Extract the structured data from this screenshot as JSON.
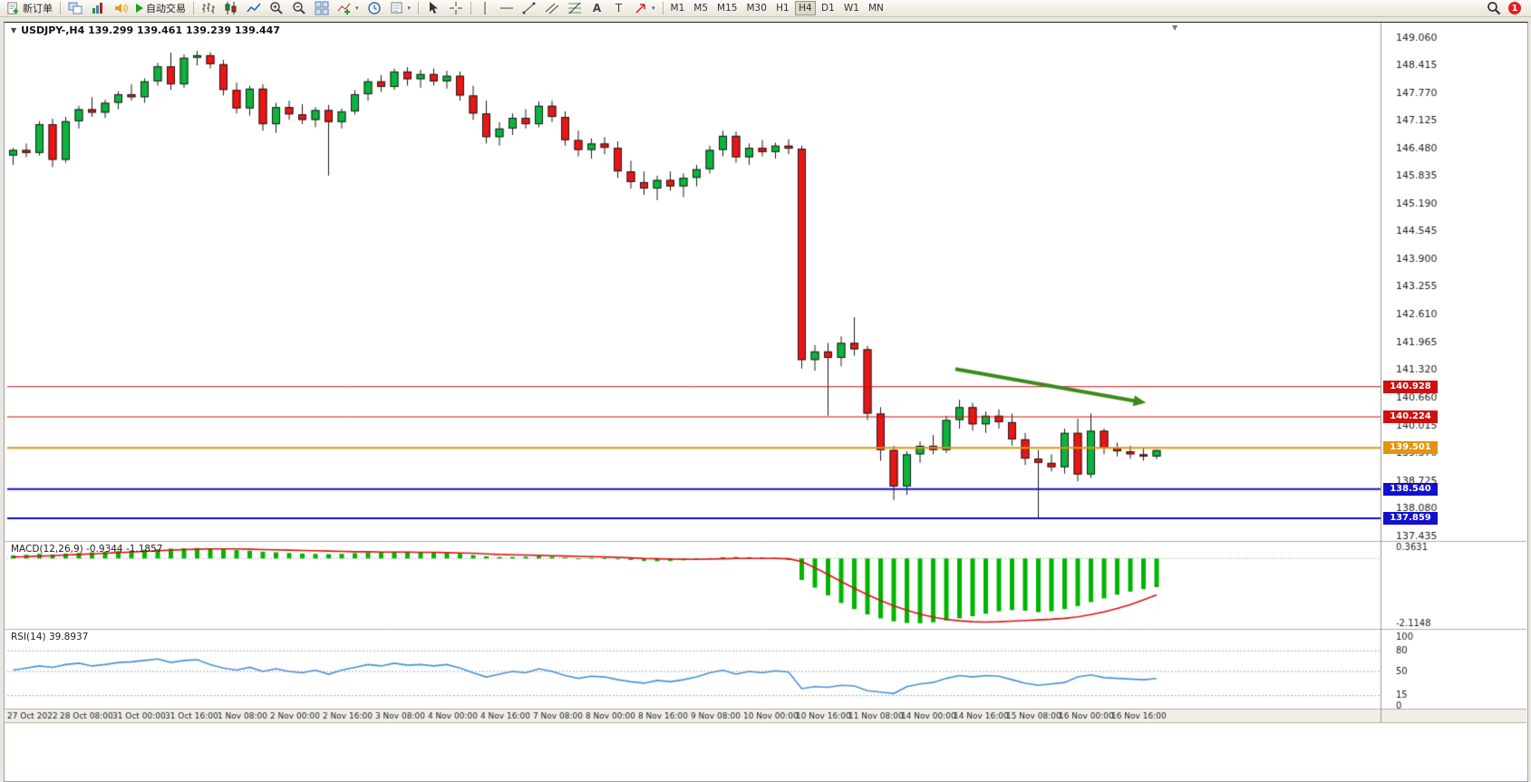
{
  "toolbar": {
    "new_order_label": "新订单",
    "auto_trading_label": "自动交易",
    "timeframes": [
      "M1",
      "M5",
      "M15",
      "M30",
      "H1",
      "H4",
      "D1",
      "W1",
      "MN"
    ],
    "active_timeframe": "H4",
    "notification_count": "1",
    "icon_names": [
      "new-order",
      "charts",
      "market-watch",
      "alerts",
      "auto-trading",
      "bar-chart",
      "candlestick-chart",
      "line-chart",
      "zoom-in",
      "zoom-out",
      "tile-windows",
      "indicators",
      "clock",
      "templates",
      "cursor",
      "crosshair",
      "vertical-line",
      "horizontal-line",
      "trendline",
      "equidistant-channel",
      "fibonacci",
      "text",
      "text-label",
      "arrows",
      "search",
      "notifications"
    ]
  },
  "chart_title": "USDJPY-,H4 139.299 139.461 139.239 139.447",
  "chart_data": {
    "type": "candlestick",
    "symbol": "USDJPY-",
    "period": "H4",
    "last_ohlc": {
      "open": 139.299,
      "high": 139.461,
      "low": 139.239,
      "close": 139.447
    },
    "colors": {
      "bull": "#0db33c",
      "bear": "#ea1515",
      "wick": "#1a1a1a",
      "macd_hist": "#00b400",
      "macd_signal": "#dd1111",
      "rsi_line": "#4a90d9",
      "arrow": "#3c8a1e"
    },
    "price_axis": {
      "ticks": [
        "149.060",
        "148.415",
        "147.770",
        "147.125",
        "146.480",
        "145.835",
        "145.190",
        "144.545",
        "143.900",
        "143.255",
        "142.610",
        "141.965",
        "141.320",
        "140.660",
        "140.015",
        "139.370",
        "138.725",
        "138.080",
        "137.435"
      ]
    },
    "time_labels": [
      "27 Oct 2022",
      "28 Oct 08:00",
      "31 Oct 00:00",
      "31 Oct 16:00",
      "1 Nov 08:00",
      "2 Nov 00:00",
      "2 Nov 16:00",
      "3 Nov 08:00",
      "4 Nov 00:00",
      "4 Nov 16:00",
      "7 Nov 08:00",
      "8 Nov 00:00",
      "8 Nov 16:00",
      "9 Nov 08:00",
      "10 Nov 00:00",
      "10 Nov 16:00",
      "11 Nov 08:00",
      "14 Nov 00:00",
      "14 Nov 16:00",
      "15 Nov 08:00",
      "16 Nov 00:00",
      "16 Nov 16:00"
    ],
    "candles": [
      [
        146.32,
        146.5,
        146.1,
        146.45
      ],
      [
        146.45,
        146.6,
        146.28,
        146.38
      ],
      [
        146.38,
        147.12,
        146.32,
        147.05
      ],
      [
        147.05,
        147.18,
        146.05,
        146.22
      ],
      [
        146.22,
        147.22,
        146.15,
        147.12
      ],
      [
        147.12,
        147.48,
        146.95,
        147.4
      ],
      [
        147.4,
        147.68,
        147.22,
        147.32
      ],
      [
        147.32,
        147.62,
        147.2,
        147.55
      ],
      [
        147.55,
        147.82,
        147.4,
        147.75
      ],
      [
        147.75,
        147.98,
        147.6,
        147.68
      ],
      [
        147.68,
        148.12,
        147.55,
        148.05
      ],
      [
        148.05,
        148.48,
        147.95,
        148.4
      ],
      [
        148.4,
        148.72,
        147.85,
        147.98
      ],
      [
        147.98,
        148.68,
        147.9,
        148.6
      ],
      [
        148.6,
        148.76,
        148.42,
        148.66
      ],
      [
        148.66,
        148.73,
        148.35,
        148.45
      ],
      [
        148.45,
        148.55,
        147.72,
        147.85
      ],
      [
        147.85,
        148.02,
        147.3,
        147.42
      ],
      [
        147.42,
        147.95,
        147.25,
        147.88
      ],
      [
        147.88,
        147.98,
        146.9,
        147.05
      ],
      [
        147.05,
        147.55,
        146.85,
        147.45
      ],
      [
        147.45,
        147.6,
        147.15,
        147.28
      ],
      [
        147.28,
        147.52,
        147.05,
        147.15
      ],
      [
        147.15,
        147.45,
        146.98,
        147.38
      ],
      [
        147.38,
        147.5,
        145.85,
        147.1
      ],
      [
        147.1,
        147.42,
        146.95,
        147.35
      ],
      [
        147.35,
        147.85,
        147.28,
        147.75
      ],
      [
        147.75,
        148.12,
        147.6,
        148.05
      ],
      [
        148.05,
        148.2,
        147.8,
        147.92
      ],
      [
        147.92,
        148.35,
        147.85,
        148.28
      ],
      [
        148.28,
        148.38,
        147.95,
        148.1
      ],
      [
        148.1,
        148.32,
        147.9,
        148.22
      ],
      [
        148.22,
        148.35,
        147.95,
        148.05
      ],
      [
        148.05,
        148.3,
        147.88,
        148.18
      ],
      [
        148.18,
        148.28,
        147.6,
        147.72
      ],
      [
        147.72,
        147.95,
        147.15,
        147.3
      ],
      [
        147.3,
        147.6,
        146.6,
        146.75
      ],
      [
        146.75,
        147.1,
        146.55,
        146.95
      ],
      [
        146.95,
        147.3,
        146.8,
        147.2
      ],
      [
        147.2,
        147.4,
        146.95,
        147.05
      ],
      [
        147.05,
        147.58,
        146.98,
        147.48
      ],
      [
        147.48,
        147.6,
        147.1,
        147.22
      ],
      [
        147.22,
        147.35,
        146.55,
        146.68
      ],
      [
        146.68,
        146.9,
        146.3,
        146.45
      ],
      [
        146.45,
        146.72,
        146.25,
        146.6
      ],
      [
        146.6,
        146.75,
        146.35,
        146.5
      ],
      [
        146.5,
        146.65,
        145.8,
        145.95
      ],
      [
        145.95,
        146.2,
        145.55,
        145.7
      ],
      [
        145.7,
        145.95,
        145.4,
        145.55
      ],
      [
        145.55,
        145.85,
        145.28,
        145.75
      ],
      [
        145.75,
        145.95,
        145.5,
        145.6
      ],
      [
        145.6,
        145.9,
        145.35,
        145.8
      ],
      [
        145.8,
        146.1,
        145.6,
        146.0
      ],
      [
        146.0,
        146.55,
        145.9,
        146.45
      ],
      [
        146.45,
        146.9,
        146.3,
        146.78
      ],
      [
        146.78,
        146.88,
        146.15,
        146.28
      ],
      [
        146.28,
        146.6,
        146.1,
        146.5
      ],
      [
        146.5,
        146.68,
        146.3,
        146.4
      ],
      [
        146.4,
        146.62,
        146.25,
        146.55
      ],
      [
        146.55,
        146.7,
        146.35,
        146.48
      ],
      [
        146.48,
        146.55,
        141.35,
        141.55
      ],
      [
        141.55,
        141.9,
        141.3,
        141.75
      ],
      [
        141.75,
        141.95,
        140.25,
        141.6
      ],
      [
        141.6,
        142.1,
        141.4,
        141.95
      ],
      [
        141.95,
        142.55,
        141.65,
        141.8
      ],
      [
        141.8,
        141.88,
        140.15,
        140.3
      ],
      [
        140.3,
        140.45,
        139.2,
        139.45
      ],
      [
        139.45,
        139.55,
        138.28,
        138.6
      ],
      [
        138.6,
        139.42,
        138.4,
        139.35
      ],
      [
        139.35,
        139.65,
        139.15,
        139.55
      ],
      [
        139.55,
        139.8,
        139.35,
        139.45
      ],
      [
        139.45,
        140.25,
        139.38,
        140.15
      ],
      [
        140.15,
        140.62,
        139.95,
        140.45
      ],
      [
        140.45,
        140.55,
        139.9,
        140.05
      ],
      [
        140.05,
        140.35,
        139.85,
        140.25
      ],
      [
        140.25,
        140.4,
        139.95,
        140.1
      ],
      [
        140.1,
        140.3,
        139.55,
        139.7
      ],
      [
        139.7,
        139.85,
        139.1,
        139.25
      ],
      [
        139.25,
        139.45,
        137.86,
        139.15
      ],
      [
        139.15,
        139.35,
        138.95,
        139.05
      ],
      [
        139.05,
        139.95,
        138.9,
        139.85
      ],
      [
        139.85,
        140.18,
        138.72,
        138.88
      ],
      [
        138.88,
        140.3,
        138.8,
        139.9
      ],
      [
        139.9,
        139.95,
        139.35,
        139.5
      ],
      [
        139.5,
        139.62,
        139.3,
        139.42
      ],
      [
        139.42,
        139.55,
        139.25,
        139.35
      ],
      [
        139.35,
        139.5,
        139.2,
        139.3
      ],
      [
        139.299,
        139.461,
        139.239,
        139.447
      ]
    ],
    "hlines": [
      {
        "price": 140.928,
        "label": "140.928",
        "color": "#cc1111",
        "width": 1
      },
      {
        "price": 140.224,
        "label": "140.224",
        "color": "#cc1111",
        "width": 1
      },
      {
        "price": 139.501,
        "label": "139.501",
        "color": "#e39410",
        "width": 2
      },
      {
        "price": 138.54,
        "label": "138.540",
        "color": "#1111cc",
        "width": 2
      },
      {
        "price": 137.859,
        "label": "137.859",
        "color": "#1111cc",
        "width": 2
      }
    ],
    "arrow": {
      "from_index": 72,
      "from_price": 141.34,
      "to_index": 86.5,
      "to_price": 140.55
    },
    "macd": {
      "label": "MACD(12,26,9) -0.9344 -1.1857",
      "current_macd": -0.9344,
      "current_signal": -1.1857,
      "axis_max": 0.3631,
      "axis_min": -2.1148,
      "axis_labels": [
        "0.3631",
        "-2.1148"
      ],
      "hist": [
        0.1,
        0.12,
        0.15,
        0.13,
        0.16,
        0.18,
        0.2,
        0.22,
        0.24,
        0.26,
        0.28,
        0.3,
        0.32,
        0.33,
        0.34,
        0.33,
        0.3,
        0.27,
        0.25,
        0.22,
        0.2,
        0.18,
        0.16,
        0.15,
        0.14,
        0.15,
        0.17,
        0.19,
        0.21,
        0.22,
        0.22,
        0.21,
        0.2,
        0.18,
        0.15,
        0.11,
        0.07,
        0.05,
        0.05,
        0.06,
        0.07,
        0.06,
        0.03,
        -0.01,
        0.02,
        0.01,
        -0.02,
        -0.05,
        -0.08,
        -0.09,
        -0.08,
        -0.06,
        -0.03,
        0.01,
        0.04,
        0.05,
        0.04,
        0.03,
        0.02,
        -0.05,
        -0.7,
        -0.95,
        -1.2,
        -1.45,
        -1.65,
        -1.82,
        -1.95,
        -2.05,
        -2.1,
        -2.11,
        -2.08,
        -2.02,
        -1.95,
        -1.88,
        -1.8,
        -1.72,
        -1.68,
        -1.7,
        -1.75,
        -1.72,
        -1.65,
        -1.55,
        -1.42,
        -1.3,
        -1.18,
        -1.08,
        -1.0,
        -0.9344
      ],
      "signal": [
        0.05,
        0.06,
        0.08,
        0.09,
        0.11,
        0.13,
        0.15,
        0.17,
        0.19,
        0.21,
        0.23,
        0.25,
        0.27,
        0.29,
        0.3,
        0.31,
        0.31,
        0.31,
        0.3,
        0.29,
        0.28,
        0.27,
        0.26,
        0.25,
        0.24,
        0.23,
        0.22,
        0.22,
        0.21,
        0.21,
        0.21,
        0.2,
        0.2,
        0.19,
        0.18,
        0.17,
        0.15,
        0.13,
        0.12,
        0.11,
        0.1,
        0.09,
        0.08,
        0.07,
        0.06,
        0.05,
        0.04,
        0.02,
        0.0,
        -0.01,
        -0.02,
        -0.03,
        -0.03,
        -0.02,
        -0.01,
        0.0,
        0.0,
        0.0,
        0.0,
        -0.01,
        -0.1,
        -0.3,
        -0.52,
        -0.75,
        -0.97,
        -1.18,
        -1.37,
        -1.54,
        -1.69,
        -1.81,
        -1.91,
        -1.98,
        -2.03,
        -2.06,
        -2.07,
        -2.06,
        -2.04,
        -2.02,
        -2.0,
        -1.98,
        -1.95,
        -1.9,
        -1.83,
        -1.74,
        -1.63,
        -1.5,
        -1.35,
        -1.1857
      ]
    },
    "rsi": {
      "label": "RSI(14) 39.8937",
      "current": 39.8937,
      "levels": [
        80,
        50,
        15
      ],
      "axis_labels": [
        "100",
        "80",
        "50",
        "15",
        "0"
      ],
      "values": [
        52,
        55,
        58,
        56,
        60,
        62,
        58,
        60,
        63,
        64,
        66,
        68,
        63,
        66,
        67,
        60,
        55,
        52,
        56,
        50,
        54,
        50,
        48,
        52,
        46,
        52,
        56,
        60,
        58,
        62,
        59,
        60,
        58,
        60,
        55,
        48,
        42,
        46,
        50,
        48,
        54,
        50,
        44,
        40,
        43,
        42,
        38,
        35,
        33,
        37,
        35,
        38,
        42,
        48,
        52,
        46,
        50,
        48,
        51,
        49,
        25,
        28,
        27,
        30,
        29,
        22,
        20,
        18,
        28,
        32,
        34,
        40,
        44,
        42,
        44,
        43,
        38,
        33,
        30,
        32,
        34,
        42,
        45,
        41,
        40,
        39,
        38,
        39.89
      ]
    }
  }
}
